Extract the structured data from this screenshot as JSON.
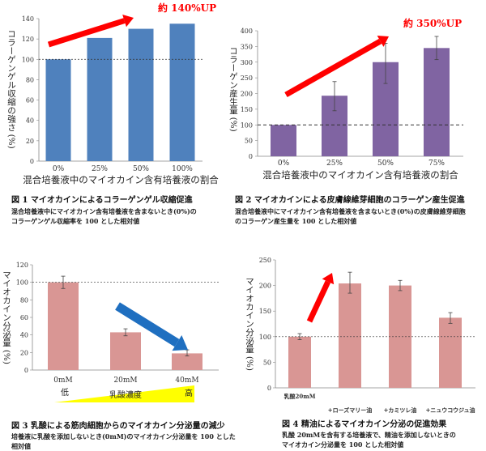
{
  "chart_data": [
    {
      "type": "bar",
      "categories": [
        "0%",
        "25%",
        "50%",
        "100%"
      ],
      "values": [
        100,
        121,
        130,
        135
      ],
      "ylabel": "コラーゲンゲル収縮の強さ (%)",
      "xlabel": "混合培養液中のマイオカイン含有培養液の割合",
      "ylim": [
        0,
        140
      ],
      "yticks": [
        0,
        20,
        40,
        60,
        80,
        100,
        120,
        140
      ],
      "reference_line": 100,
      "annotation": "約 140%UP",
      "arrow": "up",
      "bar_color": "#4f81bd",
      "caption_title": "図 1  マイオカインによるコラーゲンゲル収縮促進",
      "caption_lines": [
        "混合培養液中にマイオカイン含有培養液を含まないとき(0%)の",
        "コラーゲンゲル収縮率を 100 とした相対値"
      ]
    },
    {
      "type": "bar",
      "categories": [
        "0%",
        "25%",
        "50%",
        "75%"
      ],
      "values": [
        100,
        193,
        300,
        345
      ],
      "error_low": [
        100,
        145,
        232,
        308
      ],
      "error_high": [
        100,
        238,
        360,
        382
      ],
      "ylabel": "コラーゲン産生量 (%)",
      "xlabel": "混合培養液中のマイオカイン含有培養液の割合",
      "ylim": [
        0,
        400
      ],
      "yticks": [
        0,
        50,
        100,
        150,
        200,
        250,
        300,
        350,
        400
      ],
      "reference_line": 100,
      "annotation": "約 350%UP",
      "arrow": "up",
      "bar_color": "#8064a2",
      "caption_title": "図 2  マイオカインによる皮膚線維芽細胞のコラーゲン産生促進",
      "caption_lines": [
        "混合培養液中にマイオカイン含有培養液を含まないとき(0%)の皮膚線維芽細胞",
        "のコラーゲン産生量を 100 とした相対値"
      ]
    },
    {
      "type": "bar",
      "categories": [
        "0mM",
        "20mM",
        "40mM"
      ],
      "values": [
        100,
        43,
        19
      ],
      "error_low": [
        93,
        39,
        16
      ],
      "error_high": [
        107,
        47,
        23
      ],
      "ylabel": "マイオカイン分泌量 (%)",
      "ylim": [
        0,
        120
      ],
      "yticks": [
        0,
        20,
        40,
        60,
        80,
        100,
        120
      ],
      "reference_line": 100,
      "gradient_labels": {
        "low": "低",
        "middle": "乳酸濃度",
        "high": "高"
      },
      "arrow": "down",
      "bar_color": "#d99694",
      "caption_title": "図 3  乳酸による筋肉細胞からのマイオカイン分泌量の減少",
      "caption_lines": [
        "培養液に乳酸を添加しないとき(0mM)のマイオカイン分泌量を  100  とした",
        "相対値"
      ]
    },
    {
      "type": "bar",
      "categories": [
        "乳酸20mM",
        "+ローズマリー油",
        "+カミツレ油",
        "+ニュウコウジュ油"
      ],
      "values": [
        100,
        204,
        200,
        137
      ],
      "error_low": [
        94,
        185,
        190,
        126
      ],
      "error_high": [
        106,
        226,
        210,
        147
      ],
      "ylabel": "マイオカイン分泌量 (%)",
      "ylim": [
        0,
        250
      ],
      "yticks": [
        0,
        50,
        100,
        150,
        200,
        250
      ],
      "reference_line": 100,
      "arrow": "up",
      "bar_color": "#d99694",
      "caption_title": "図 4  精油によるマイオカイン分泌の促進効果",
      "caption_lines": [
        "乳酸 20mMを含有する培養液で、精油を添加しないときの",
        "マイオカイン分泌量を 100 とした相対値"
      ]
    }
  ]
}
